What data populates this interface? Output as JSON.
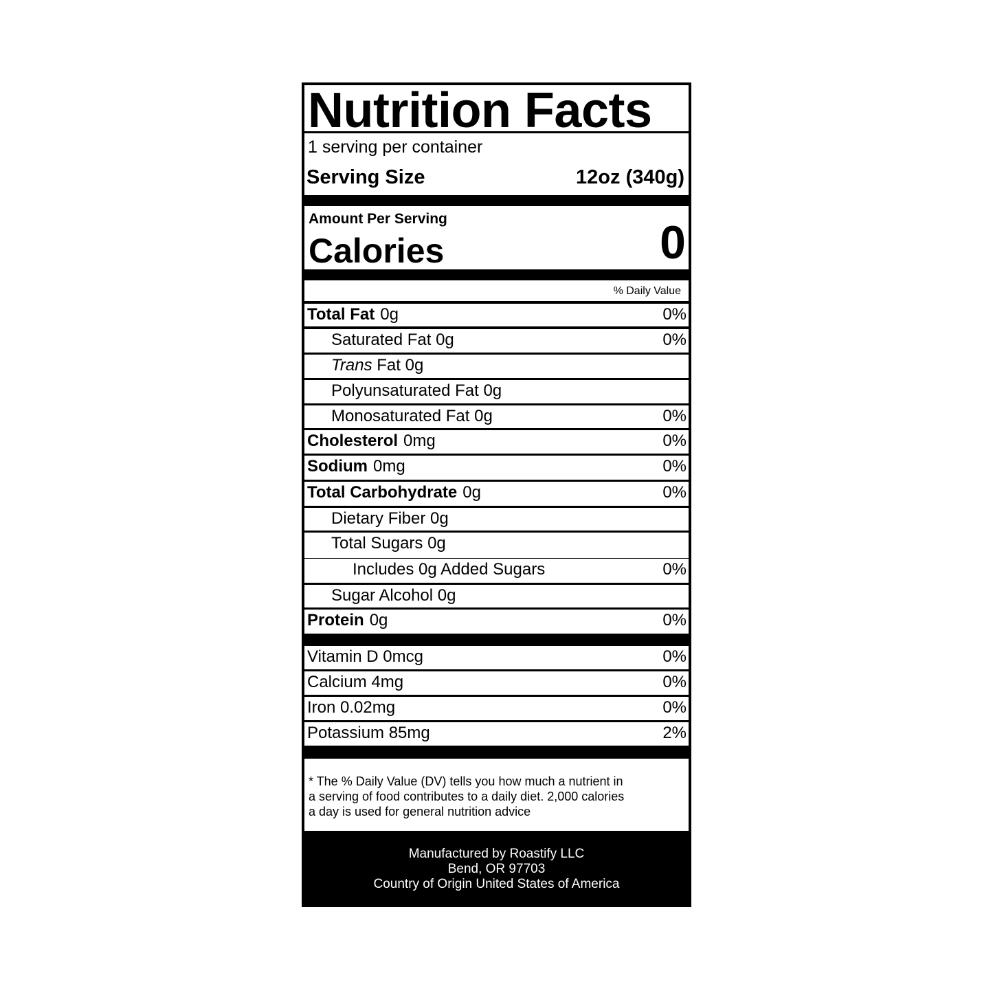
{
  "title": "Nutrition Facts",
  "servings_per_container": "1 serving per container",
  "serving_size": {
    "label": "Serving Size",
    "value": "12oz (340g)"
  },
  "amount_per_serving": "Amount Per Serving",
  "calories": {
    "label": "Calories",
    "value": "0"
  },
  "daily_value_header": "% Daily Value",
  "nutrients": [
    {
      "bold": "Total Fat",
      "amount": "0g",
      "dv": "0%"
    },
    {
      "label": "Saturated Fat 0g",
      "dv": "0%"
    },
    {
      "italic": "Trans",
      "label": " Fat 0g",
      "dv": ""
    },
    {
      "label": "Polyunsaturated Fat 0g",
      "dv": ""
    },
    {
      "label": "Monosaturated Fat 0g",
      "dv": "0%"
    },
    {
      "bold": "Cholesterol",
      "amount": "0mg",
      "dv": "0%"
    },
    {
      "bold": "Sodium",
      "amount": "0mg",
      "dv": "0%"
    },
    {
      "bold": "Total Carbohydrate",
      "amount": "0g",
      "dv": "0%"
    },
    {
      "label": "Dietary Fiber 0g",
      "dv": ""
    },
    {
      "label": "Total Sugars 0g",
      "dv": ""
    },
    {
      "label": "Includes 0g Added Sugars",
      "dv": "0%"
    },
    {
      "label": "Sugar Alcohol 0g",
      "dv": ""
    },
    {
      "bold": "Protein",
      "amount": "0g",
      "dv": "0%"
    }
  ],
  "vitamins": [
    {
      "label": "Vitamin D 0mcg",
      "dv": "0%"
    },
    {
      "label": "Calcium 4mg",
      "dv": "0%"
    },
    {
      "label": "Iron 0.02mg",
      "dv": "0%"
    },
    {
      "label": "Potassium 85mg",
      "dv": "2%"
    }
  ],
  "footnote": [
    "* The % Daily Value (DV) tells you how much a nutrient in",
    "a serving of food contributes to a daily diet. 2,000 calories",
    "a day is used for general nutrition advice"
  ],
  "manufacturer": [
    "Manufactured by Roastify LLC",
    "Bend, OR 97703",
    "Country of Origin United States of America"
  ],
  "colors": {
    "ink": "#000000",
    "paper": "#ffffff"
  }
}
